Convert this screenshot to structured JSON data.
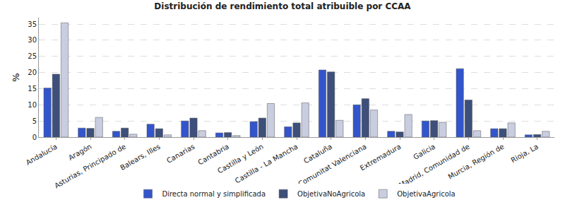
{
  "chart_data": {
    "type": "bar",
    "title": "Distribución de rendimiento total atribuible por CCAA",
    "y_label": "%",
    "categories": [
      "Andalucía",
      "Aragón",
      "Asturias, Principado de",
      "Balears, Illes",
      "Canarias",
      "Cantabria",
      "Castilla y León",
      "Castilla - La Mancha",
      "Cataluña",
      "Comunitat Valenciana",
      "Extremadura",
      "Galicia",
      "Madrid, Comunidad de",
      "Murcia, Región de",
      "Rioja, La"
    ],
    "series": [
      {
        "name": "Directa normal y simplificada",
        "color": "#3355cc",
        "values": [
          15.2,
          2.8,
          1.8,
          4.0,
          5.0,
          1.3,
          4.8,
          3.2,
          20.8,
          10.0,
          1.8,
          5.0,
          21.2,
          2.6,
          0.7
        ]
      },
      {
        "name": "ObjetivaNoAgricola",
        "color": "#3d4f7a",
        "values": [
          19.5,
          2.7,
          2.8,
          2.6,
          5.9,
          1.4,
          5.9,
          4.4,
          20.2,
          11.9,
          1.6,
          5.1,
          11.5,
          2.6,
          0.8
        ]
      },
      {
        "name": "ObjetivaAgricola",
        "color": "#c9cde0",
        "values": [
          35.4,
          6.1,
          0.9,
          0.7,
          2.0,
          0.5,
          10.4,
          10.6,
          5.2,
          8.4,
          7.0,
          4.6,
          2.0,
          4.4,
          1.8
        ]
      }
    ],
    "ylim": [
      0,
      37
    ],
    "yticks": [
      0,
      5,
      10,
      15,
      20,
      25,
      30,
      35
    ],
    "grid": true,
    "legend": "bottom"
  }
}
